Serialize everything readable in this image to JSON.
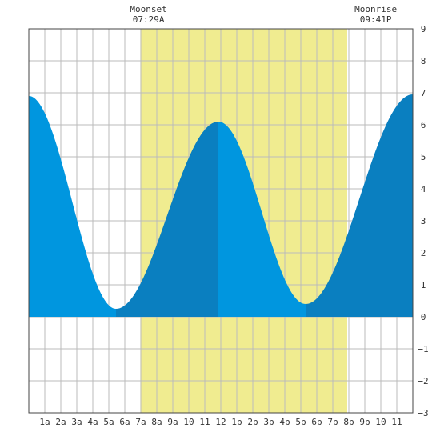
{
  "chart_data": {
    "type": "area",
    "title": "",
    "xlabel": "",
    "ylabel": "",
    "xlim": [
      0,
      24
    ],
    "ylim": [
      -3,
      9
    ],
    "yticks": [
      9,
      8,
      7,
      6,
      5,
      4,
      3,
      2,
      1,
      0,
      -1,
      -2,
      -3
    ],
    "xtick_hours": [
      1,
      2,
      3,
      4,
      5,
      6,
      7,
      8,
      9,
      10,
      11,
      12,
      13,
      14,
      15,
      16,
      17,
      18,
      19,
      20,
      21,
      22,
      23
    ],
    "xtick_labels": [
      "1a",
      "2a",
      "3a",
      "4a",
      "5a",
      "6a",
      "7a",
      "8a",
      "9a",
      "10",
      "11",
      "12",
      "1p",
      "2p",
      "3p",
      "4p",
      "5p",
      "6p",
      "7p",
      "8p",
      "9p",
      "10",
      "11"
    ],
    "grid": true,
    "daylight": {
      "start_hour": 6.97,
      "end_hour": 19.9,
      "color": "#f0ec90"
    },
    "events": [
      {
        "name": "Moonset",
        "time": "07:29A",
        "hour": 7.48
      },
      {
        "name": "Moonrise",
        "time": "09:41P",
        "hour": 21.68
      }
    ],
    "extremes": [
      {
        "hour": 0.0,
        "height": 6.9,
        "type": "high"
      },
      {
        "hour": 5.45,
        "height": 0.25,
        "type": "low"
      },
      {
        "hour": 11.85,
        "height": 6.1,
        "type": "high"
      },
      {
        "hour": 17.3,
        "height": 0.4,
        "type": "low"
      },
      {
        "hour": 24.0,
        "height": 6.95,
        "type": "high"
      }
    ],
    "colors": {
      "rising": "#0a7fc0",
      "falling": "#0096df",
      "grid": "#bbbbbb",
      "background": "#ffffff"
    }
  }
}
